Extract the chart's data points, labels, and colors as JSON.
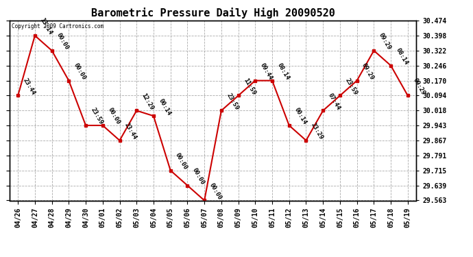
{
  "title": "Barometric Pressure Daily High 20090520",
  "copyright_text": "Copyright 2009 Cartronics.com",
  "x_labels": [
    "04/26",
    "04/27",
    "04/28",
    "04/29",
    "04/30",
    "05/01",
    "05/02",
    "05/03",
    "05/04",
    "05/05",
    "05/06",
    "05/07",
    "05/08",
    "05/09",
    "05/10",
    "05/11",
    "05/12",
    "05/13",
    "05/14",
    "05/15",
    "05/16",
    "05/17",
    "05/18",
    "05/19"
  ],
  "y_values": [
    30.094,
    30.398,
    30.322,
    30.17,
    29.943,
    29.943,
    29.867,
    30.018,
    29.991,
    29.715,
    29.639,
    29.563,
    30.018,
    30.094,
    30.17,
    30.17,
    29.943,
    29.867,
    30.018,
    30.094,
    30.17,
    30.322,
    30.246,
    30.094
  ],
  "point_labels": [
    "23:44",
    "13:14",
    "00:00",
    "00:00",
    "23:59",
    "00:00",
    "23:44",
    "12:29",
    "00:14",
    "00:00",
    "00:00",
    "00:00",
    "23:59",
    "11:59",
    "09:44",
    "08:14",
    "00:14",
    "23:29",
    "07:44",
    "23:59",
    "09:29",
    "09:29",
    "08:14",
    "09:29"
  ],
  "y_min": 29.563,
  "y_max": 30.474,
  "y_ticks": [
    29.563,
    29.639,
    29.715,
    29.791,
    29.867,
    29.943,
    30.018,
    30.094,
    30.17,
    30.246,
    30.322,
    30.398,
    30.474
  ],
  "line_color": "#cc0000",
  "marker_color": "#cc0000",
  "bg_color": "#ffffff",
  "plot_bg_color": "#ffffff",
  "grid_color": "#aaaaaa",
  "title_fontsize": 11,
  "tick_fontsize": 7,
  "label_fontsize": 6.5
}
